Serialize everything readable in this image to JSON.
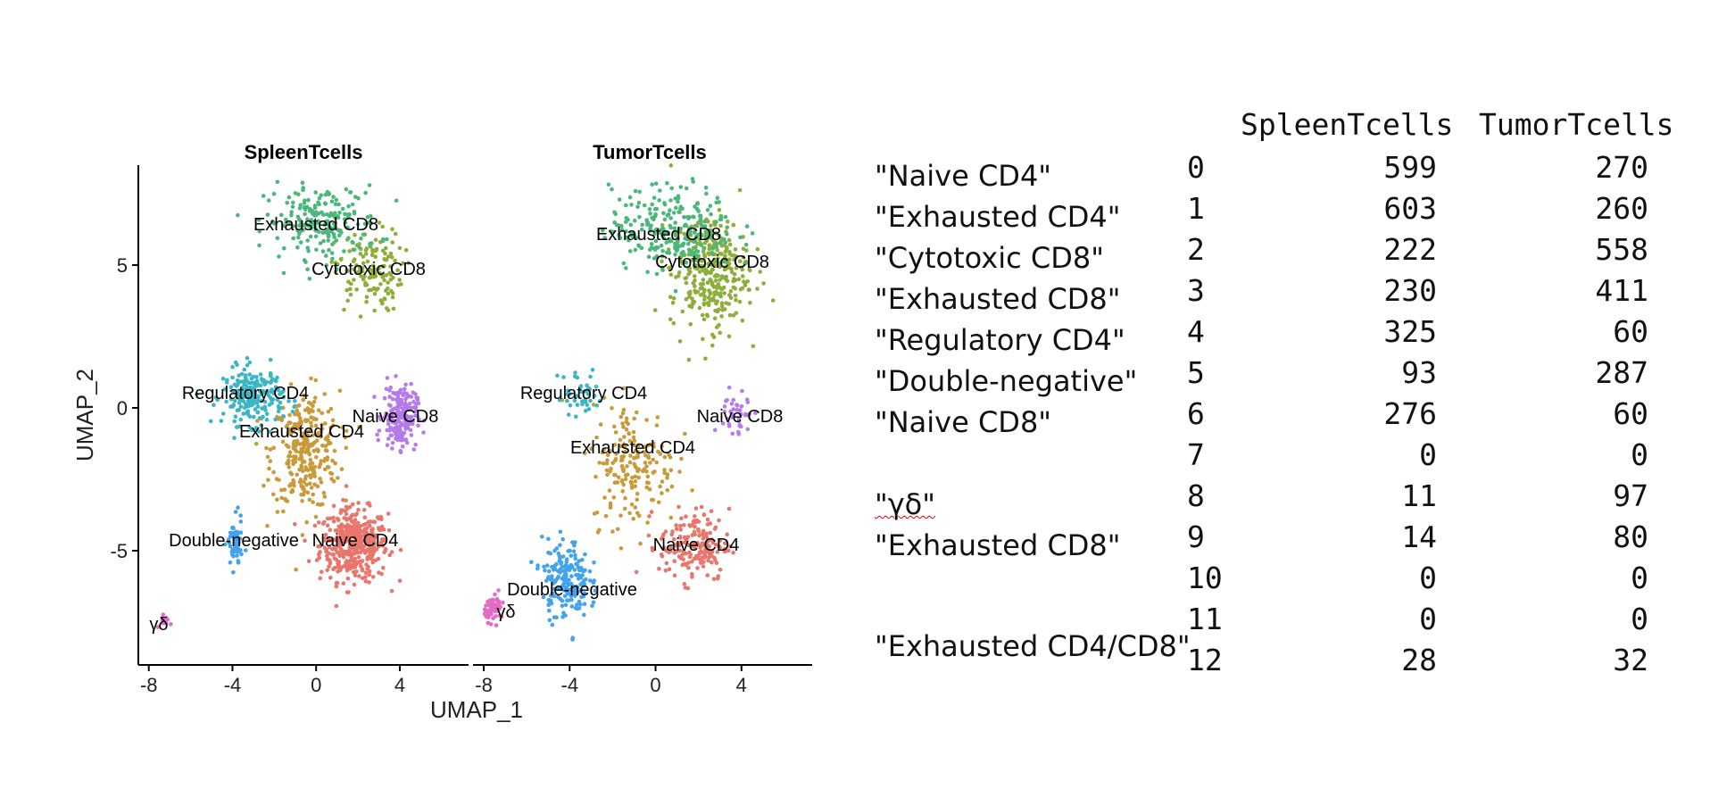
{
  "chart_data": [
    {
      "type": "scatter",
      "title": "SpleenTcells",
      "xlabel": "UMAP_1",
      "ylabel": "UMAP_2",
      "xlim": [
        -8.5,
        7.5
      ],
      "ylim": [
        -9,
        8.5
      ],
      "xticks": [
        "-8",
        "-4",
        "0",
        "4"
      ],
      "yticks": [
        "5",
        "0",
        "-5"
      ],
      "clusters": [
        {
          "label": "Naive CD4",
          "color": "#E8766C",
          "center": [
            1.8,
            -4.8
          ],
          "spread": [
            1.8,
            1.4
          ],
          "n": 420
        },
        {
          "label": "Exhausted CD4",
          "color": "#C99A3A",
          "center": [
            -0.5,
            -1.5
          ],
          "spread": [
            1.8,
            2.3
          ],
          "n": 300
        },
        {
          "label": "Cytotoxic CD8",
          "color": "#8DAE3A",
          "center": [
            2.5,
            4.8
          ],
          "spread": [
            1.8,
            1.6
          ],
          "n": 140
        },
        {
          "label": "Exhausted CD8",
          "color": "#4CB77A",
          "center": [
            0.3,
            6.5
          ],
          "spread": [
            3.0,
            1.4
          ],
          "n": 200
        },
        {
          "label": "Regulatory CD4",
          "color": "#3BB6C4",
          "center": [
            -3.0,
            0.4
          ],
          "spread": [
            1.6,
            1.1
          ],
          "n": 220
        },
        {
          "label": "Double-negative",
          "color": "#43A3EC",
          "center": [
            -3.9,
            -4.8
          ],
          "spread": [
            0.4,
            1.0
          ],
          "n": 60
        },
        {
          "label": "Naive CD8",
          "color": "#B57BEA",
          "center": [
            4.0,
            -0.3
          ],
          "spread": [
            0.9,
            1.2
          ],
          "n": 200
        },
        {
          "label": "γδ",
          "color": "#E26CC6",
          "center": [
            -7.3,
            -7.5
          ],
          "spread": [
            0.3,
            0.4
          ],
          "n": 10
        }
      ]
    },
    {
      "type": "scatter",
      "title": "TumorTcells",
      "xlabel": "UMAP_1",
      "ylabel": "",
      "xlim": [
        -8.5,
        7.5
      ],
      "ylim": [
        -9,
        8.5
      ],
      "xticks": [
        "-8",
        "-4",
        "0",
        "4"
      ],
      "clusters": [
        {
          "label": "Naive CD4",
          "color": "#E8766C",
          "center": [
            1.8,
            -4.8
          ],
          "spread": [
            1.8,
            1.4
          ],
          "n": 180
        },
        {
          "label": "Exhausted CD4",
          "color": "#C99A3A",
          "center": [
            -1.0,
            -2.0
          ],
          "spread": [
            2.2,
            2.4
          ],
          "n": 180
        },
        {
          "label": "Cytotoxic CD8",
          "color": "#8DAE3A",
          "center": [
            2.5,
            4.8
          ],
          "spread": [
            2.0,
            2.3
          ],
          "n": 330
        },
        {
          "label": "Exhausted CD8",
          "color": "#4CB77A",
          "center": [
            0.8,
            6.3
          ],
          "spread": [
            3.2,
            1.6
          ],
          "n": 250
        },
        {
          "label": "Regulatory CD4",
          "color": "#3BB6C4",
          "center": [
            -3.5,
            0.5
          ],
          "spread": [
            1.2,
            1.0
          ],
          "n": 40
        },
        {
          "label": "Double-negative",
          "color": "#43A3EC",
          "center": [
            -4.2,
            -6.0
          ],
          "spread": [
            1.2,
            1.5
          ],
          "n": 190
        },
        {
          "label": "Naive CD8",
          "color": "#B57BEA",
          "center": [
            3.8,
            -0.3
          ],
          "spread": [
            0.8,
            1.2
          ],
          "n": 40
        },
        {
          "label": "γδ",
          "color": "#E26CC6",
          "center": [
            -7.5,
            -7.0
          ],
          "spread": [
            0.5,
            0.5
          ],
          "n": 60
        }
      ]
    }
  ],
  "table": {
    "columns": [
      "SpleenTcells",
      "TumorTcells"
    ],
    "rows": [
      {
        "name": "\"Naive CD4\"",
        "idx": "0",
        "spleen": "599",
        "tumor": "270"
      },
      {
        "name": "\"Exhausted CD4\"",
        "idx": "1",
        "spleen": "603",
        "tumor": "260"
      },
      {
        "name": "\"Cytotoxic CD8\"",
        "idx": "2",
        "spleen": "222",
        "tumor": "558"
      },
      {
        "name": "\"Exhausted CD8\"",
        "idx": "3",
        "spleen": "230",
        "tumor": "411"
      },
      {
        "name": "\"Regulatory CD4\"",
        "idx": "4",
        "spleen": "325",
        "tumor": "60"
      },
      {
        "name": "\"Double-negative\"",
        "idx": "5",
        "spleen": "93",
        "tumor": "287"
      },
      {
        "name": "\"Naive CD8\"",
        "idx": "6",
        "spleen": "276",
        "tumor": "60"
      },
      {
        "name": "",
        "idx": "7",
        "spleen": "0",
        "tumor": "0"
      },
      {
        "name": "\"γδ\"",
        "idx": "8",
        "spleen": "11",
        "tumor": "97"
      },
      {
        "name": "\"Exhausted CD8\"",
        "idx": "9",
        "spleen": "14",
        "tumor": "80"
      },
      {
        "name": "",
        "idx": "10",
        "spleen": "0",
        "tumor": "0"
      },
      {
        "name": "",
        "idx": "11",
        "spleen": "0",
        "tumor": "0"
      },
      {
        "name": "\"Exhausted CD4/CD8\"",
        "idx": "12",
        "spleen": "28",
        "tumor": "32"
      }
    ]
  }
}
